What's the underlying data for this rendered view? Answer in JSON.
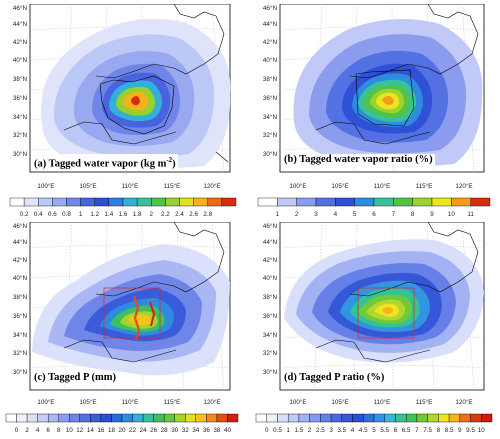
{
  "panels": [
    {
      "id": "a",
      "title": "(a) Tagged water vapor (kg m",
      "title_sup": "-2",
      "title_tail": ")",
      "lat_labels": [
        "46°N",
        "44°N",
        "42°N",
        "40°N",
        "38°N",
        "36°N",
        "34°N",
        "32°N",
        "30°N"
      ],
      "lon_labels": [
        "100°E",
        "105°E",
        "110°E",
        "115°E",
        "120°E"
      ],
      "colorbar_labels": [
        "0.2",
        "0.4",
        "0.6",
        "0.8",
        "1",
        "1.2",
        "1.4",
        "1.6",
        "1.8",
        "2",
        "2.2",
        "2.4",
        "2.6",
        "2.8"
      ],
      "colorbar_colors": [
        "#ffffff",
        "#dfe4fb",
        "#bcc8f6",
        "#98a9f1",
        "#6f86e8",
        "#4863e0",
        "#2a4fd6",
        "#2f7fe0",
        "#33b0d8",
        "#35c29a",
        "#4fc34a",
        "#98d02e",
        "#e2e31f",
        "#f6b21b",
        "#ee6a17",
        "#d92b12"
      ]
    },
    {
      "id": "b",
      "title": "(b) Tagged water vapor ratio (%)",
      "lat_labels": [
        "46°N",
        "44°N",
        "42°N",
        "40°N",
        "38°N",
        "36°N",
        "34°N",
        "32°N",
        "30°N"
      ],
      "lon_labels": [
        "100°E",
        "105°E",
        "110°E",
        "115°E",
        "120°E"
      ],
      "colorbar_labels": [
        "1",
        "2",
        "3",
        "4",
        "5",
        "6",
        "7",
        "8",
        "9",
        "10",
        "11"
      ],
      "colorbar_colors": [
        "#ffffff",
        "#c0c9f7",
        "#8b9cef",
        "#5371e3",
        "#2f51d8",
        "#2f8be0",
        "#37c29a",
        "#54c247",
        "#9ed22f",
        "#ebe520",
        "#f29c1a",
        "#d92b12"
      ]
    },
    {
      "id": "c",
      "title": "(c) Tagged P (mm)",
      "lat_labels": [
        "46°N",
        "44°N",
        "42°N",
        "40°N",
        "38°N",
        "36°N",
        "34°N",
        "32°N",
        "30°N"
      ],
      "lon_labels": [
        "100°E",
        "105°E",
        "110°E",
        "115°E",
        "120°E"
      ],
      "colorbar_labels": [
        "0",
        "2",
        "4",
        "6",
        "8",
        "10",
        "12",
        "14",
        "16",
        "18",
        "20",
        "22",
        "24",
        "26",
        "28",
        "30",
        "32",
        "34",
        "36",
        "38",
        "40"
      ],
      "colorbar_colors": [
        "#ffffff",
        "#eef0fd",
        "#dbe1fb",
        "#c3cdf8",
        "#a9b7f4",
        "#8d9eef",
        "#6f86e8",
        "#5270e2",
        "#3a5cdb",
        "#2a4fd6",
        "#2a6adb",
        "#2f8be0",
        "#33afd9",
        "#35c29a",
        "#3fbf5f",
        "#67c73a",
        "#a4d42c",
        "#dfe21f",
        "#f5c41b",
        "#f08a18",
        "#e44e14",
        "#d21f10"
      ]
    },
    {
      "id": "d",
      "title": "(d) Tagged P ratio (%)",
      "lat_labels": [
        "46°N",
        "44°N",
        "42°N",
        "40°N",
        "38°N",
        "36°N",
        "34°N",
        "32°N",
        "30°N"
      ],
      "lon_labels": [
        "100°E",
        "105°E",
        "110°E",
        "115°E",
        "120°E"
      ],
      "colorbar_labels": [
        "0",
        "0.5",
        "1",
        "1.5",
        "2",
        "2.5",
        "3",
        "3.5",
        "4",
        "4.5",
        "5",
        "5.5",
        "6",
        "6.5",
        "7",
        "7.5",
        "8",
        "8.5",
        "9",
        "9.5",
        "10"
      ],
      "colorbar_colors": [
        "#ffffff",
        "#eef0fd",
        "#d9dffb",
        "#bfcaf7",
        "#a2b2f3",
        "#8398ee",
        "#6680e7",
        "#4b69e0",
        "#3558d9",
        "#2a4fd6",
        "#2c72dc",
        "#3196df",
        "#34b7d4",
        "#36c294",
        "#43c05a",
        "#6fc938",
        "#b0d72b",
        "#ece41f",
        "#f4b41a",
        "#ec7116",
        "#dc3a12",
        "#cc1a10"
      ]
    }
  ]
}
